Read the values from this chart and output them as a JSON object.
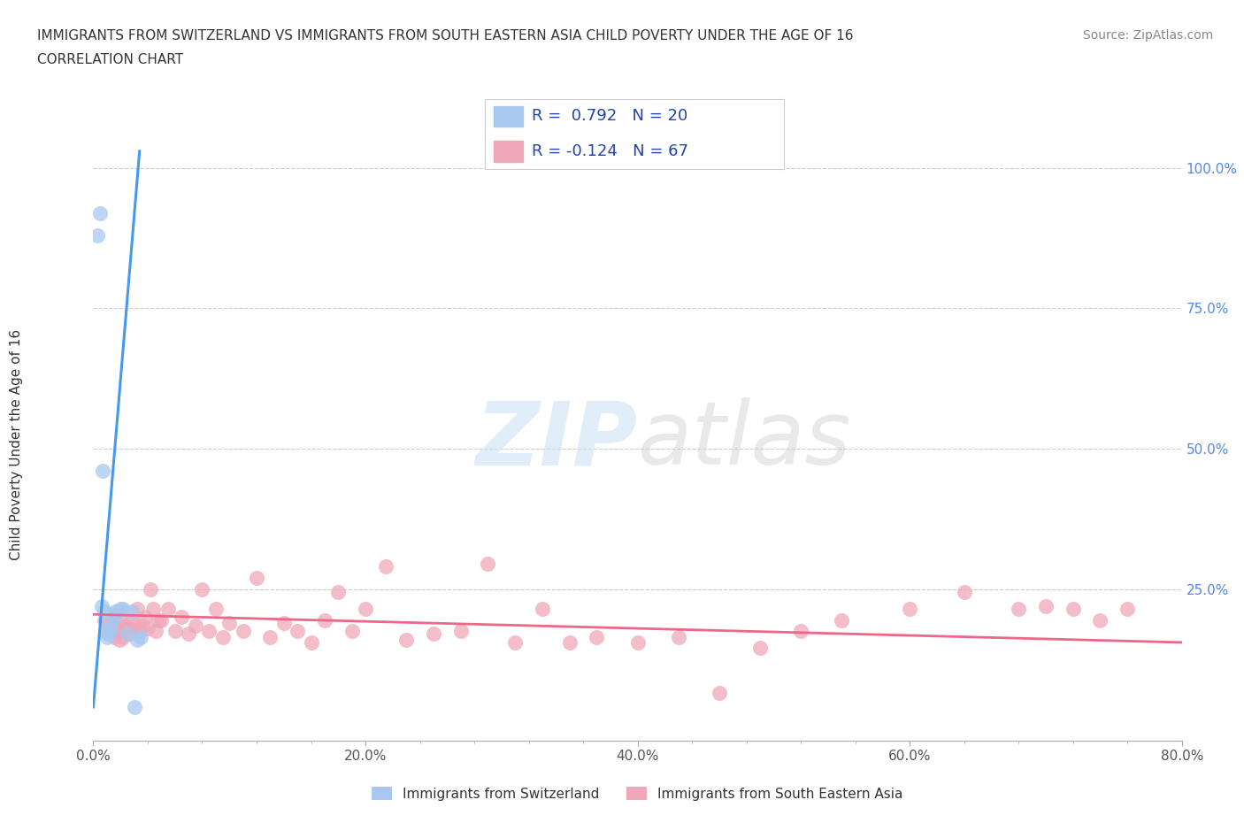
{
  "title_line1": "IMMIGRANTS FROM SWITZERLAND VS IMMIGRANTS FROM SOUTH EASTERN ASIA CHILD POVERTY UNDER THE AGE OF 16",
  "title_line2": "CORRELATION CHART",
  "source_text": "Source: ZipAtlas.com",
  "ylabel": "Child Poverty Under the Age of 16",
  "xmin": 0.0,
  "xmax": 0.8,
  "ymin": -0.02,
  "ymax": 1.05,
  "xtick_labels": [
    "0.0%",
    "",
    "",
    "",
    "",
    "20.0%",
    "",
    "",
    "",
    "",
    "40.0%",
    "",
    "",
    "",
    "",
    "60.0%",
    "",
    "",
    "",
    "",
    "80.0%"
  ],
  "xtick_vals": [
    0.0,
    0.04,
    0.08,
    0.12,
    0.16,
    0.2,
    0.24,
    0.28,
    0.32,
    0.36,
    0.4,
    0.44,
    0.48,
    0.52,
    0.56,
    0.6,
    0.64,
    0.68,
    0.72,
    0.76,
    0.8
  ],
  "ytick_labels": [
    "100.0%",
    "75.0%",
    "50.0%",
    "25.0%"
  ],
  "ytick_vals": [
    1.0,
    0.75,
    0.5,
    0.25
  ],
  "grid_color": "#cccccc",
  "background_color": "#ffffff",
  "watermark_zip": "ZIP",
  "watermark_atlas": "atlas",
  "color_swiss": "#a8c8f0",
  "color_sea": "#f0a8b8",
  "line_color_swiss": "#4499ee",
  "line_color_sea": "#ee6688",
  "swiss_scatter_x": [
    0.003,
    0.005,
    0.006,
    0.007,
    0.008,
    0.009,
    0.01,
    0.011,
    0.012,
    0.013,
    0.015,
    0.016,
    0.018,
    0.02,
    0.022,
    0.025,
    0.028,
    0.03,
    0.032,
    0.035
  ],
  "swiss_scatter_y": [
    0.88,
    0.92,
    0.22,
    0.46,
    0.21,
    0.175,
    0.165,
    0.17,
    0.175,
    0.185,
    0.2,
    0.21,
    0.21,
    0.215,
    0.215,
    0.17,
    0.21,
    0.04,
    0.16,
    0.165
  ],
  "sea_scatter_x": [
    0.008,
    0.01,
    0.012,
    0.014,
    0.015,
    0.016,
    0.018,
    0.019,
    0.02,
    0.022,
    0.023,
    0.025,
    0.027,
    0.028,
    0.03,
    0.032,
    0.034,
    0.036,
    0.038,
    0.04,
    0.042,
    0.044,
    0.046,
    0.048,
    0.05,
    0.055,
    0.06,
    0.065,
    0.07,
    0.075,
    0.08,
    0.085,
    0.09,
    0.095,
    0.1,
    0.11,
    0.12,
    0.13,
    0.14,
    0.15,
    0.16,
    0.17,
    0.18,
    0.19,
    0.2,
    0.215,
    0.23,
    0.25,
    0.27,
    0.29,
    0.31,
    0.33,
    0.35,
    0.37,
    0.4,
    0.43,
    0.46,
    0.49,
    0.52,
    0.55,
    0.6,
    0.64,
    0.68,
    0.7,
    0.72,
    0.74,
    0.76
  ],
  "sea_scatter_y": [
    0.195,
    0.185,
    0.175,
    0.19,
    0.165,
    0.18,
    0.175,
    0.16,
    0.195,
    0.165,
    0.185,
    0.18,
    0.17,
    0.195,
    0.185,
    0.215,
    0.175,
    0.185,
    0.2,
    0.18,
    0.25,
    0.215,
    0.175,
    0.195,
    0.195,
    0.215,
    0.175,
    0.2,
    0.17,
    0.185,
    0.25,
    0.175,
    0.215,
    0.165,
    0.19,
    0.175,
    0.27,
    0.165,
    0.19,
    0.175,
    0.155,
    0.195,
    0.245,
    0.175,
    0.215,
    0.29,
    0.16,
    0.17,
    0.175,
    0.295,
    0.155,
    0.215,
    0.155,
    0.165,
    0.155,
    0.165,
    0.065,
    0.145,
    0.175,
    0.195,
    0.215,
    0.245,
    0.215,
    0.22,
    0.215,
    0.195,
    0.215
  ],
  "swiss_line_x": [
    0.0,
    0.034
  ],
  "swiss_line_y": [
    0.04,
    1.03
  ],
  "sea_line_x": [
    0.0,
    0.8
  ],
  "sea_line_y": [
    0.205,
    0.155
  ],
  "legend_box_swiss_label": "R =  0.792   N = 20",
  "legend_box_sea_label": "R = -0.124   N = 67",
  "bottom_legend_swiss": "Immigrants from Switzerland",
  "bottom_legend_sea": "Immigrants from South Eastern Asia"
}
